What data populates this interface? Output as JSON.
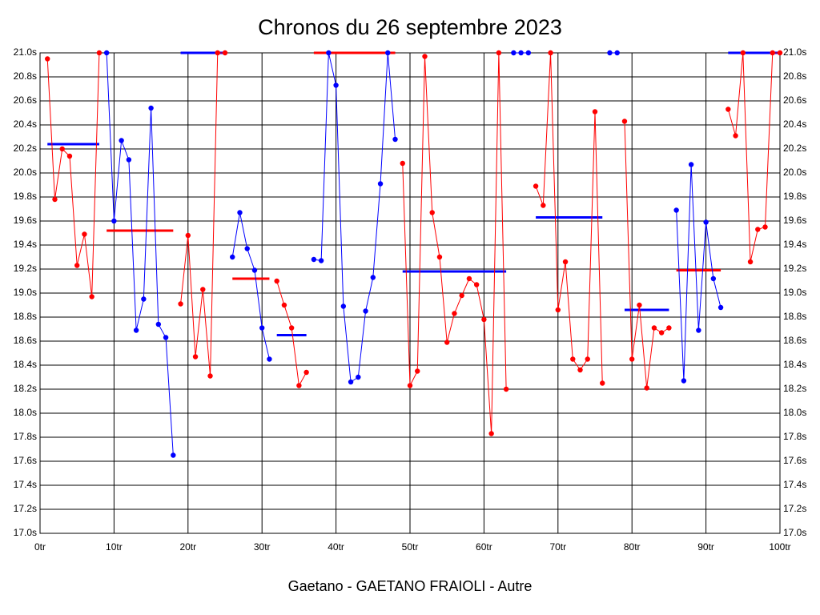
{
  "chart_data": {
    "type": "line",
    "title": "Chronos du 26 septembre 2023",
    "footer": "Gaetano - GAETANO FRAIOLI - Autre",
    "xlim": [
      0,
      100
    ],
    "ylim": [
      17.0,
      21.0
    ],
    "grid": true,
    "xticks": [
      {
        "value": 0,
        "label": "0tr"
      },
      {
        "value": 10,
        "label": "10tr"
      },
      {
        "value": 20,
        "label": "20tr"
      },
      {
        "value": 30,
        "label": "30tr"
      },
      {
        "value": 40,
        "label": "40tr"
      },
      {
        "value": 50,
        "label": "50tr"
      },
      {
        "value": 60,
        "label": "60tr"
      },
      {
        "value": 70,
        "label": "70tr"
      },
      {
        "value": 80,
        "label": "80tr"
      },
      {
        "value": 90,
        "label": "90tr"
      },
      {
        "value": 100,
        "label": "100tr"
      }
    ],
    "yticks": [
      {
        "value": 17.0,
        "label": "17.0s"
      },
      {
        "value": 17.2,
        "label": "17.2s"
      },
      {
        "value": 17.4,
        "label": "17.4s"
      },
      {
        "value": 17.6,
        "label": "17.6s"
      },
      {
        "value": 17.8,
        "label": "17.8s"
      },
      {
        "value": 18.0,
        "label": "18.0s"
      },
      {
        "value": 18.2,
        "label": "18.2s"
      },
      {
        "value": 18.4,
        "label": "18.4s"
      },
      {
        "value": 18.6,
        "label": "18.6s"
      },
      {
        "value": 18.8,
        "label": "18.8s"
      },
      {
        "value": 19.0,
        "label": "19.0s"
      },
      {
        "value": 19.2,
        "label": "19.2s"
      },
      {
        "value": 19.4,
        "label": "19.4s"
      },
      {
        "value": 19.6,
        "label": "19.6s"
      },
      {
        "value": 19.8,
        "label": "19.8s"
      },
      {
        "value": 20.0,
        "label": "20.0s"
      },
      {
        "value": 20.2,
        "label": "20.2s"
      },
      {
        "value": 20.4,
        "label": "20.4s"
      },
      {
        "value": 20.6,
        "label": "20.6s"
      },
      {
        "value": 20.8,
        "label": "20.8s"
      },
      {
        "value": 21.0,
        "label": "21.0s"
      }
    ],
    "series": [
      {
        "color": "#ff0000",
        "x": [
          1,
          2,
          3,
          4,
          5,
          6,
          7,
          8
        ],
        "values": [
          20.95,
          19.78,
          20.2,
          20.14,
          19.23,
          19.49,
          18.97,
          21.0
        ],
        "mean": 20.24,
        "mean_color": "#0000ff"
      },
      {
        "color": "#0000ff",
        "x": [
          9,
          10,
          11,
          12,
          13,
          14,
          15,
          16,
          17,
          18
        ],
        "values": [
          21.0,
          19.6,
          20.27,
          20.11,
          18.69,
          18.95,
          20.54,
          18.74,
          18.63,
          17.65
        ],
        "mean": 19.52,
        "mean_color": "#ff0000"
      },
      {
        "color": "#ff0000",
        "x": [
          19,
          20,
          21,
          22,
          23,
          24,
          25
        ],
        "values": [
          18.91,
          19.48,
          18.47,
          19.03,
          18.31,
          21.0,
          21.0
        ],
        "mean": 21.0,
        "mean_color": "#0000ff"
      },
      {
        "color": "#0000ff",
        "x": [
          26,
          27,
          28,
          29,
          30,
          31
        ],
        "values": [
          19.3,
          19.67,
          19.37,
          19.19,
          18.71,
          18.45
        ],
        "mean": 19.12,
        "mean_color": "#ff0000"
      },
      {
        "color": "#ff0000",
        "x": [
          32,
          33,
          34,
          35,
          36
        ],
        "values": [
          19.1,
          18.9,
          18.71,
          18.23,
          18.34
        ],
        "mean": 18.65,
        "mean_color": "#0000ff"
      },
      {
        "color": "#0000ff",
        "x": [
          37,
          38,
          39,
          40,
          41,
          42,
          43,
          44,
          45,
          46,
          47,
          48
        ],
        "values": [
          19.28,
          19.27,
          21.0,
          20.73,
          18.89,
          18.26,
          18.3,
          18.85,
          19.13,
          19.91,
          21.0,
          20.28
        ],
        "mean": 21.0,
        "mean_color": "#ff0000"
      },
      {
        "color": "#ff0000",
        "x": [
          49,
          50,
          51,
          52,
          53,
          54,
          55,
          56,
          57,
          58,
          59,
          60,
          61,
          62,
          63
        ],
        "values": [
          20.08,
          18.23,
          18.35,
          20.97,
          19.67,
          19.3,
          18.59,
          18.83,
          18.98,
          19.12,
          19.07,
          18.78,
          17.83,
          21.0,
          18.2
        ],
        "mean": 19.18,
        "mean_color": "#0000ff"
      },
      {
        "color": "#0000ff",
        "x": [
          64,
          65,
          66
        ],
        "values": [
          21.0,
          21.0,
          21.0
        ]
      },
      {
        "color": "#ff0000",
        "x": [
          67,
          68,
          69,
          70,
          71,
          72,
          73,
          74,
          75,
          76
        ],
        "values": [
          19.89,
          19.73,
          21.0,
          18.86,
          19.26,
          18.45,
          18.36,
          18.45,
          20.51,
          18.25
        ],
        "mean": 19.63,
        "mean_color": "#0000ff"
      },
      {
        "color": "#0000ff",
        "x": [
          77,
          78
        ],
        "values": [
          21.0,
          21.0
        ]
      },
      {
        "color": "#ff0000",
        "x": [
          79,
          80,
          81,
          82,
          83,
          84,
          85
        ],
        "values": [
          20.43,
          18.45,
          18.9,
          18.21,
          18.71,
          18.67,
          18.71
        ],
        "mean": 18.86,
        "mean_color": "#0000ff"
      },
      {
        "color": "#0000ff",
        "x": [
          86,
          87,
          88,
          89,
          90,
          91,
          92
        ],
        "values": [
          19.69,
          18.27,
          20.07,
          18.69,
          19.59,
          19.12,
          18.88
        ],
        "mean": 19.19,
        "mean_color": "#ff0000"
      },
      {
        "color": "#ff0000",
        "x": [
          93,
          94,
          95,
          96,
          97,
          98,
          99,
          100
        ],
        "values": [
          20.53,
          20.31,
          21.0,
          19.26,
          19.53,
          19.55,
          21.0,
          21.0
        ],
        "mean": 21.0,
        "mean_color": "#0000ff"
      }
    ]
  }
}
